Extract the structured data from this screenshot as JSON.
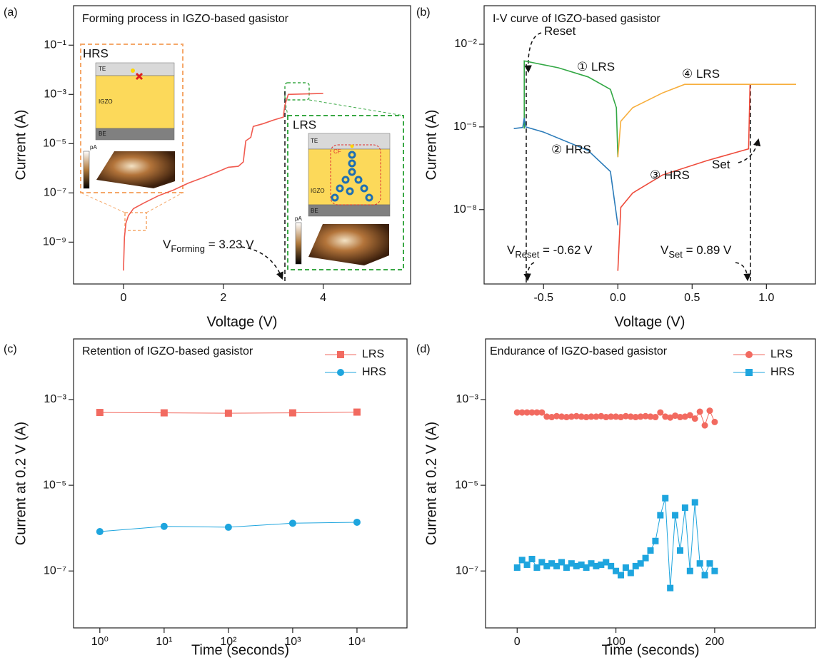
{
  "chart_data": [
    {
      "type": "line",
      "panel_label": "(a)",
      "title": "Forming process in IGZO-based gasistor",
      "x_label": "Voltage (V)",
      "y_label": "Current (A)",
      "yscale": "log",
      "xlim": [
        -1.0,
        5.75
      ],
      "ylim": [
        2e-11,
        4
      ],
      "xticks": [
        0,
        2,
        4
      ],
      "yticks": [
        {
          "value": 1e-09,
          "label": "10⁻⁹"
        },
        {
          "value": 1e-07,
          "label": "10⁻⁷"
        },
        {
          "value": 1e-05,
          "label": "10⁻⁵"
        },
        {
          "value": 0.001,
          "label": "10⁻³"
        },
        {
          "value": 0.1,
          "label": "10⁻¹"
        }
      ],
      "x": [
        0,
        0.02,
        0.05,
        0.1,
        0.2,
        0.4,
        0.7,
        1.0,
        1.3,
        1.6,
        1.9,
        2.1,
        2.3,
        2.4,
        2.45,
        2.55,
        2.6,
        2.8,
        3.0,
        3.2,
        3.23,
        3.3,
        4.0
      ],
      "series": [
        {
          "color": "#f05a4f",
          "values": [
            7e-11,
            1.6e-09,
            6e-09,
            1.2e-08,
            2.3e-08,
            3.8e-08,
            7.7e-08,
            1.3e-07,
            2.5e-07,
            4.2e-07,
            7.4e-07,
            1.1e-06,
            1.2e-06,
            1.8e-06,
            1.3e-05,
            1.8e-05,
            5e-05,
            6.5e-05,
            9e-05,
            0.00012,
            0.00035,
            0.001,
            0.0011
          ]
        }
      ],
      "annotations": [
        {
          "text": "V",
          "subscript": "Forming",
          "suffix": " = 3.23 V"
        }
      ],
      "insets": [
        {
          "title": "HRS",
          "layers": [
            "TE",
            "IGZO",
            "BE"
          ],
          "colorbar_unit": "pA"
        },
        {
          "title": "LRS",
          "layers": [
            "TE",
            "IGZO",
            "BE"
          ],
          "filament": "CF",
          "colorbar_unit": "pA"
        }
      ]
    },
    {
      "type": "line",
      "panel_label": "(b)",
      "title": "I-V curve of IGZO-based gasistor",
      "x_label": "Voltage (V)",
      "y_label": "Current (A)",
      "yscale": "log",
      "xlim": [
        -0.9,
        1.33
      ],
      "ylim": [
        2e-11,
        0.25
      ],
      "xticks": [
        -0.5,
        {
          "value": 0,
          "label": "0.0"
        },
        0.5,
        {
          "value": 1,
          "label": "1.0"
        }
      ],
      "yticks": [
        {
          "value": 1e-08,
          "label": "10⁻⁸"
        },
        {
          "value": 1e-05,
          "label": "10⁻⁵"
        },
        {
          "value": 0.01,
          "label": "10⁻²"
        }
      ],
      "series": [
        {
          "color": "#33a845",
          "x": [
            -0.63,
            -0.63,
            -0.4,
            -0.2,
            -0.05,
            -0.01,
            0.0
          ],
          "values": [
            8.7e-06,
            0.0025,
            0.0014,
            0.00065,
            0.00023,
            5e-05,
            8e-07
          ]
        },
        {
          "color": "#2b7bb9",
          "x": [
            -0.7,
            -0.64,
            -0.63,
            -0.62,
            -0.5,
            -0.2,
            -0.05,
            0.0
          ],
          "values": [
            8.7e-06,
            9.5e-06,
            2.1e-05,
            1e-05,
            6.5e-06,
            1.4e-06,
            2.4e-07,
            2.7e-09
          ]
        },
        {
          "color": "#ee4b3b",
          "x": [
            0.0,
            0.02,
            0.1,
            0.3,
            0.6,
            0.88,
            0.89
          ],
          "values": [
            6e-11,
            1.2e-08,
            4e-08,
            1.8e-07,
            6e-07,
            1.6e-06,
            0.00035
          ]
        },
        {
          "color": "#f7ae3c",
          "x": [
            0.0,
            0.02,
            0.1,
            0.3,
            0.45,
            1.2
          ],
          "values": [
            8e-07,
            1.6e-05,
            5e-05,
            0.00017,
            0.00035,
            0.00035
          ]
        }
      ],
      "annotations": [
        {
          "text": "Reset"
        },
        {
          "text": "① LRS"
        },
        {
          "text": "② HRS"
        },
        {
          "text": "③ HRS"
        },
        {
          "text": "④ LRS"
        },
        {
          "text": "Set"
        },
        {
          "text": "V",
          "subscript": "Reset",
          "suffix": " = -0.62 V"
        },
        {
          "text": "V",
          "subscript": "Set",
          "suffix": " = 0.89 V"
        }
      ]
    },
    {
      "type": "line",
      "panel_label": "(c)",
      "title": "Retention of IGZO-based gasistor",
      "x_label": "Time (seconds)",
      "y_label": "Current at 0.2 V (A)",
      "xscale": "log",
      "yscale": "log",
      "xlim": [
        0.39,
        60000
      ],
      "ylim": [
        4.7e-09,
        0.026
      ],
      "xticks": [
        {
          "value": 1,
          "label": "10⁰"
        },
        {
          "value": 10,
          "label": "10¹"
        },
        {
          "value": 100,
          "label": "10²"
        },
        {
          "value": 1000,
          "label": "10³"
        },
        {
          "value": 10000,
          "label": "10⁴"
        }
      ],
      "yticks": [
        {
          "value": 1e-07,
          "label": "10⁻⁷"
        },
        {
          "value": 1e-05,
          "label": "10⁻⁵"
        },
        {
          "value": 0.001,
          "label": "10⁻³"
        }
      ],
      "legend": "upper right",
      "x": [
        1,
        10,
        100,
        1000,
        10000
      ],
      "series": [
        {
          "name": "LRS",
          "color": "#f26a60",
          "marker": "square",
          "values": [
            0.0005,
            0.00049,
            0.00048,
            0.00049,
            0.00051
          ]
        },
        {
          "name": "HRS",
          "color": "#1ea5de",
          "marker": "circle",
          "values": [
            8.3e-07,
            1.1e-06,
            1.05e-06,
            1.3e-06,
            1.37e-06
          ]
        }
      ]
    },
    {
      "type": "line",
      "panel_label": "(d)",
      "title": "Endurance of IGZO-based gasistor",
      "x_label": "Time (seconds)",
      "y_label": "Current at 0.2 V (A)",
      "yscale": "log",
      "xlim": [
        -32,
        302
      ],
      "ylim": [
        4.7e-09,
        0.026
      ],
      "xticks": [
        0,
        100,
        200
      ],
      "yticks": [
        {
          "value": 1e-07,
          "label": "10⁻⁷"
        },
        {
          "value": 1e-05,
          "label": "10⁻⁵"
        },
        {
          "value": 0.001,
          "label": "10⁻³"
        }
      ],
      "legend": "upper right",
      "x": [
        0,
        5,
        10,
        15,
        20,
        25,
        30,
        35,
        40,
        45,
        50,
        55,
        60,
        65,
        70,
        75,
        80,
        85,
        90,
        95,
        100,
        105,
        110,
        115,
        120,
        125,
        130,
        135,
        140,
        145,
        150,
        155,
        160,
        165,
        170,
        175,
        180,
        185,
        190,
        195,
        200
      ],
      "series": [
        {
          "name": "LRS",
          "color": "#f26a60",
          "marker": "circle",
          "values": [
            0.0005,
            0.0005,
            0.0005,
            0.0005,
            0.0005,
            0.0005,
            0.0004,
            0.00039,
            0.00041,
            0.0004,
            0.00039,
            0.0004,
            0.00041,
            0.0004,
            0.00039,
            0.0004,
            0.0004,
            0.00041,
            0.00039,
            0.0004,
            0.0004,
            0.00039,
            0.00041,
            0.0004,
            0.00039,
            0.0004,
            0.00041,
            0.0004,
            0.00039,
            0.0005,
            0.0004,
            0.00038,
            0.00042,
            0.00039,
            0.0004,
            0.00043,
            0.00036,
            0.00052,
            0.00025,
            0.00055,
            0.0003
          ]
        },
        {
          "name": "HRS",
          "color": "#1ea5de",
          "marker": "square",
          "values": [
            1.2e-07,
            1.8e-07,
            1.4e-07,
            1.9e-07,
            1.2e-07,
            1.6e-07,
            1.3e-07,
            1.5e-07,
            1.3e-07,
            1.6e-07,
            1.2e-07,
            1.5e-07,
            1.3e-07,
            1.4e-07,
            1.2e-07,
            1.5e-07,
            1.3e-07,
            1.4e-07,
            1.6e-07,
            1.3e-07,
            1e-07,
            8e-08,
            1.2e-07,
            9e-08,
            1.3e-07,
            1.5e-07,
            2e-07,
            3e-07,
            5e-07,
            2e-06,
            5e-06,
            4e-08,
            2e-06,
            3e-07,
            3e-06,
            1e-07,
            4e-06,
            1.5e-07,
            8e-08,
            1.5e-07,
            1e-07
          ]
        }
      ]
    }
  ]
}
